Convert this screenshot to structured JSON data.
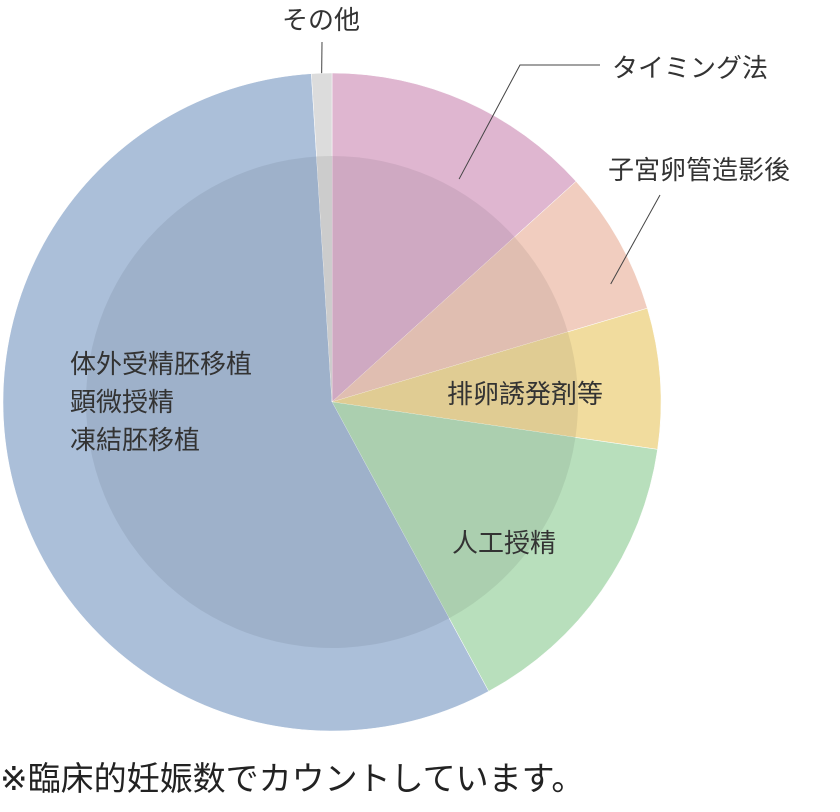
{
  "chart_data": {
    "type": "pie",
    "categories": [
      "タイミング法",
      "子宮卵管造影後",
      "排卵誘発剤等",
      "人工授精",
      "体外受精胚移植\n顕微授精\n凍結胚移植",
      "その他"
    ],
    "values": [
      13.3,
      7.1,
      6.9,
      14.8,
      56.9,
      1.0
    ],
    "colors": [
      "#dfb6d0",
      "#f1cdbf",
      "#f1dc9e",
      "#b8dfbc",
      "#abbfd9",
      "#dcdcdc"
    ],
    "note": "※臨床的妊娠数でカウントしています。"
  }
}
